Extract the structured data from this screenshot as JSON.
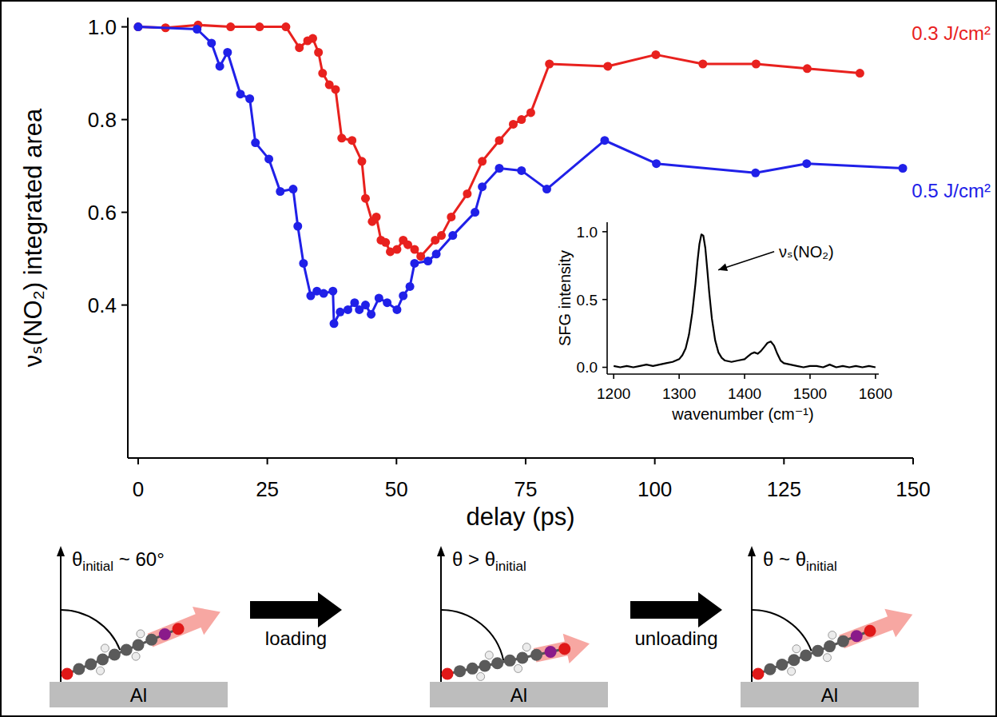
{
  "chart_data": [
    {
      "type": "line",
      "x_label": "delay (ps)",
      "y_label": "νₛ(NO₂) integrated area",
      "xlim": [
        -2,
        150
      ],
      "ylim": [
        0.07,
        1.02
      ],
      "xticks": [
        0,
        25,
        50,
        75,
        100,
        125,
        150
      ],
      "yticks": [
        0.4,
        0.6,
        0.8,
        {
          "value": 1,
          "label": "1.0"
        }
      ],
      "series": [
        {
          "name": "0.3 J/cm²",
          "color": "#e8211e",
          "marker": "circle",
          "line_style": "solid",
          "x": [
            0,
            5.3,
            11.6,
            17.9,
            23.5,
            28.6,
            31.2,
            32.8,
            33.8,
            34.9,
            35.7,
            37,
            38.2,
            39.4,
            41.4,
            43.3,
            44,
            45.3,
            46.1,
            47,
            47.9,
            48.8,
            50.1,
            51.3,
            52.2,
            53.5,
            54.7,
            57.5,
            58.7,
            60.6,
            63.7,
            66.6,
            69.9,
            72.6,
            74.2,
            76,
            79.6,
            90.9,
            100.2,
            109.3,
            119.6,
            129.5,
            139.7
          ],
          "values": [
            1.0,
            0.998,
            1.004,
            1.0,
            1.0,
            1.0,
            0.955,
            0.97,
            0.975,
            0.945,
            0.9,
            0.875,
            0.865,
            0.76,
            0.755,
            0.71,
            0.63,
            0.58,
            0.59,
            0.54,
            0.535,
            0.515,
            0.52,
            0.54,
            0.53,
            0.52,
            0.505,
            0.54,
            0.55,
            0.59,
            0.64,
            0.71,
            0.755,
            0.79,
            0.8,
            0.815,
            0.92,
            0.915,
            0.94,
            0.92,
            0.92,
            0.91,
            0.9
          ]
        },
        {
          "name": "0.5 J/cm²",
          "color": "#2020e8",
          "marker": "circle",
          "line_style": "solid",
          "x": [
            0,
            11.4,
            14.2,
            15.8,
            17.3,
            19.8,
            21.6,
            22.7,
            25.3,
            27.5,
            30,
            30.9,
            32,
            33.4,
            34.6,
            35.9,
            37.7,
            37.9,
            39.1,
            40.6,
            41.9,
            42.8,
            44,
            45.1,
            46.6,
            48.2,
            50.1,
            51.3,
            52.6,
            53.5,
            56.1,
            57.7,
            60.9,
            65.2,
            66.6,
            69.9,
            74.2,
            79.1,
            90.3,
            100.3,
            119.5,
            129.4,
            148
          ],
          "values": [
            1.0,
            0.995,
            0.965,
            0.915,
            0.945,
            0.855,
            0.845,
            0.75,
            0.715,
            0.645,
            0.65,
            0.57,
            0.49,
            0.42,
            0.43,
            0.425,
            0.43,
            0.36,
            0.385,
            0.39,
            0.405,
            0.39,
            0.4,
            0.38,
            0.415,
            0.405,
            0.39,
            0.42,
            0.44,
            0.49,
            0.495,
            0.51,
            0.55,
            0.6,
            0.655,
            0.695,
            0.69,
            0.65,
            0.755,
            0.705,
            0.685,
            0.705,
            0.695
          ]
        }
      ]
    },
    {
      "type": "line",
      "x_label": "wavenumber (cm⁻¹)",
      "y_label": "SFG intensity",
      "xlim": [
        1190,
        1605
      ],
      "ylim": [
        -0.05,
        1.07
      ],
      "xticks": [
        1200,
        1300,
        1400,
        1500,
        1600
      ],
      "yticks": [
        {
          "value": 0,
          "label": "0.0"
        },
        0.5,
        {
          "value": 1,
          "label": "1.0"
        }
      ],
      "series": [
        {
          "color": "#000000",
          "line_style": "solid",
          "x": [
            1200,
            1210,
            1220,
            1230,
            1240,
            1250,
            1260,
            1270,
            1280,
            1290,
            1300,
            1305,
            1310,
            1315,
            1320,
            1325,
            1328,
            1331,
            1334,
            1337,
            1340,
            1343,
            1346,
            1350,
            1355,
            1360,
            1365,
            1370,
            1380,
            1390,
            1400,
            1405,
            1410,
            1415,
            1420,
            1425,
            1430,
            1435,
            1440,
            1445,
            1450,
            1455,
            1460,
            1470,
            1480,
            1490,
            1500,
            1510,
            1520,
            1530,
            1540,
            1550,
            1560,
            1570,
            1580,
            1590,
            1600
          ],
          "values": [
            0.01,
            0.0,
            0.01,
            0.0,
            0.01,
            0.02,
            0.01,
            0.02,
            0.03,
            0.04,
            0.06,
            0.09,
            0.14,
            0.24,
            0.4,
            0.62,
            0.78,
            0.91,
            0.98,
            0.97,
            0.88,
            0.72,
            0.55,
            0.36,
            0.2,
            0.11,
            0.07,
            0.05,
            0.04,
            0.05,
            0.06,
            0.08,
            0.1,
            0.11,
            0.1,
            0.12,
            0.15,
            0.18,
            0.19,
            0.16,
            0.1,
            0.05,
            0.03,
            0.02,
            0.01,
            0.0,
            0.01,
            0.01,
            0.0,
            0.02,
            0.0,
            0.01,
            0.0,
            0.01,
            0.0,
            0.01,
            0.0
          ]
        }
      ],
      "annotations": [
        {
          "text": "νₛ(NO₂)",
          "x": 1350,
          "y": 0.7
        }
      ]
    }
  ],
  "diagram": {
    "panels": [
      {
        "label": [
          {
            "text": "θ"
          },
          {
            "text": "initial",
            "sub": true
          },
          {
            "text": " ~ 60°"
          }
        ],
        "surface": "Al"
      },
      {
        "label": [
          {
            "text": "θ > θ"
          },
          {
            "text": "initial",
            "sub": true
          }
        ],
        "surface": "Al"
      },
      {
        "label": [
          {
            "text": "θ ~ θ"
          },
          {
            "text": "initial",
            "sub": true
          }
        ],
        "surface": "Al"
      }
    ],
    "steps": [
      "loading",
      "unloading"
    ]
  }
}
